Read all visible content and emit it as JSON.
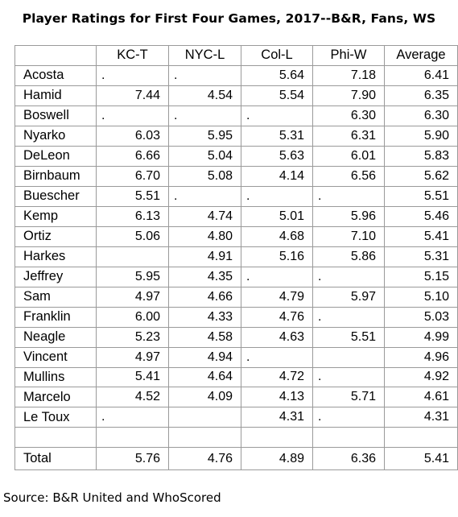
{
  "title": "Player Ratings for First Four Games, 2017--B&R, Fans, WS",
  "columns": [
    "",
    "KC-T",
    "NYC-L",
    "Col-L",
    "Phi-W",
    "Average"
  ],
  "rows": [
    {
      "name": "Acosta",
      "cells": [
        ".",
        ".",
        "5.64",
        "7.18",
        "6.41"
      ]
    },
    {
      "name": "Hamid",
      "cells": [
        "7.44",
        "4.54",
        "5.54",
        "7.90",
        "6.35"
      ]
    },
    {
      "name": "Boswell",
      "cells": [
        ".",
        ".",
        ".",
        "6.30",
        "6.30"
      ]
    },
    {
      "name": "Nyarko",
      "cells": [
        "6.03",
        "5.95",
        "5.31",
        "6.31",
        "5.90"
      ]
    },
    {
      "name": "DeLeon",
      "cells": [
        "6.66",
        "5.04",
        "5.63",
        "6.01",
        "5.83"
      ]
    },
    {
      "name": "Birnbaum",
      "cells": [
        "6.70",
        "5.08",
        "4.14",
        "6.56",
        "5.62"
      ]
    },
    {
      "name": "Buescher",
      "cells": [
        "5.51",
        ".",
        ".",
        ".",
        "5.51"
      ]
    },
    {
      "name": "Kemp",
      "cells": [
        "6.13",
        "4.74",
        "5.01",
        "5.96",
        "5.46"
      ]
    },
    {
      "name": "Ortiz",
      "cells": [
        "5.06",
        "4.80",
        "4.68",
        "7.10",
        "5.41"
      ]
    },
    {
      "name": "Harkes",
      "cells": [
        "",
        "4.91",
        "5.16",
        "5.86",
        "5.31"
      ]
    },
    {
      "name": "Jeffrey",
      "cells": [
        "5.95",
        "4.35",
        ".",
        ".",
        "5.15"
      ]
    },
    {
      "name": "Sam",
      "cells": [
        "4.97",
        "4.66",
        "4.79",
        "5.97",
        "5.10"
      ]
    },
    {
      "name": "Franklin",
      "cells": [
        "6.00",
        "4.33",
        "4.76",
        ".",
        "5.03"
      ]
    },
    {
      "name": "Neagle",
      "cells": [
        "5.23",
        "4.58",
        "4.63",
        "5.51",
        "4.99"
      ]
    },
    {
      "name": "Vincent",
      "cells": [
        "4.97",
        "4.94",
        ".",
        "",
        "4.96"
      ]
    },
    {
      "name": "Mullins",
      "cells": [
        "5.41",
        "4.64",
        "4.72",
        ".",
        "4.92"
      ]
    },
    {
      "name": "Marcelo",
      "cells": [
        "4.52",
        "4.09",
        "4.13",
        "5.71",
        "4.61"
      ]
    },
    {
      "name": "Le Toux",
      "cells": [
        ".",
        "",
        "4.31",
        ".",
        "4.31"
      ]
    }
  ],
  "total": {
    "name": "Total",
    "cells": [
      "5.76",
      "4.76",
      "4.89",
      "6.36",
      "5.41"
    ]
  },
  "source": "Source: B&R United and WhoScored"
}
